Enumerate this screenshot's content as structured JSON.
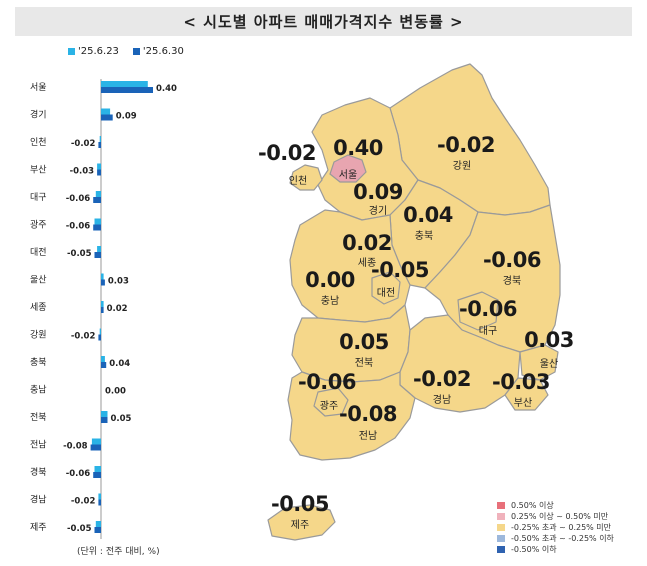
{
  "title": "< 시도별 아파트 매매가격지수 변동률 >",
  "unit_note": "(단위 : 전주 대비, %)",
  "colors": {
    "prev": "#2ab3e6",
    "curr": "#1a63b8",
    "map_fill": "#f5d78a",
    "map_seoul": "#e8a5b0",
    "map_border": "#9a9a9a"
  },
  "chart_data": {
    "type": "bar",
    "orientation": "horizontal",
    "categories": [
      "서울",
      "경기",
      "인천",
      "부산",
      "대구",
      "광주",
      "대전",
      "울산",
      "세종",
      "강원",
      "충북",
      "충남",
      "전북",
      "전남",
      "경북",
      "경남",
      "제주"
    ],
    "series": [
      {
        "name": "'25.6.23",
        "values": [
          0.36,
          0.07,
          -0.01,
          -0.03,
          -0.04,
          -0.05,
          -0.03,
          0.02,
          0.02,
          -0.01,
          0.03,
          0.0,
          0.05,
          -0.07,
          -0.05,
          -0.02,
          -0.04
        ]
      },
      {
        "name": "'25.6.30",
        "values": [
          0.4,
          0.09,
          -0.02,
          -0.03,
          -0.06,
          -0.06,
          -0.05,
          0.03,
          0.02,
          -0.02,
          0.04,
          0.0,
          0.05,
          -0.08,
          -0.06,
          -0.02,
          -0.05
        ]
      }
    ],
    "value_labels": [
      "0.40",
      "0.09",
      "-0.02",
      "-0.03",
      "-0.06",
      "-0.06",
      "-0.05",
      "0.03",
      "0.02",
      "-0.02",
      "0.04",
      "0.00",
      "0.05",
      "-0.08",
      "-0.06",
      "-0.02",
      "-0.05"
    ],
    "legend": "top"
  },
  "map": {
    "regions": [
      {
        "name": "서울",
        "value": "0.40",
        "level": "0.25% 이상 ~ 0.50% 미만"
      },
      {
        "name": "인천",
        "value": "-0.02"
      },
      {
        "name": "경기",
        "value": "0.09"
      },
      {
        "name": "강원",
        "value": "-0.02"
      },
      {
        "name": "충북",
        "value": "0.04"
      },
      {
        "name": "세종",
        "value": "0.02"
      },
      {
        "name": "충남",
        "value": "0.00"
      },
      {
        "name": "대전",
        "value": "-0.05"
      },
      {
        "name": "경북",
        "value": "-0.06"
      },
      {
        "name": "대구",
        "value": "-0.06"
      },
      {
        "name": "전북",
        "value": "0.05"
      },
      {
        "name": "울산",
        "value": "0.03"
      },
      {
        "name": "광주",
        "value": "-0.06"
      },
      {
        "name": "경남",
        "value": "-0.02"
      },
      {
        "name": "부산",
        "value": "-0.03"
      },
      {
        "name": "전남",
        "value": "-0.08"
      },
      {
        "name": "제주",
        "value": "-0.05"
      }
    ],
    "legend": [
      {
        "label": "0.50% 이상",
        "color": "#e8707a"
      },
      {
        "label": "0.25% 이상 ~ 0.50% 미만",
        "color": "#f0b2bc"
      },
      {
        "label": "-0.25% 초과 ~ 0.25% 미만",
        "color": "#f5d78a"
      },
      {
        "label": "-0.50% 초과 ~ -0.25% 이하",
        "color": "#9db8dc"
      },
      {
        "label": "-0.50% 이하",
        "color": "#2f62b0"
      }
    ]
  }
}
